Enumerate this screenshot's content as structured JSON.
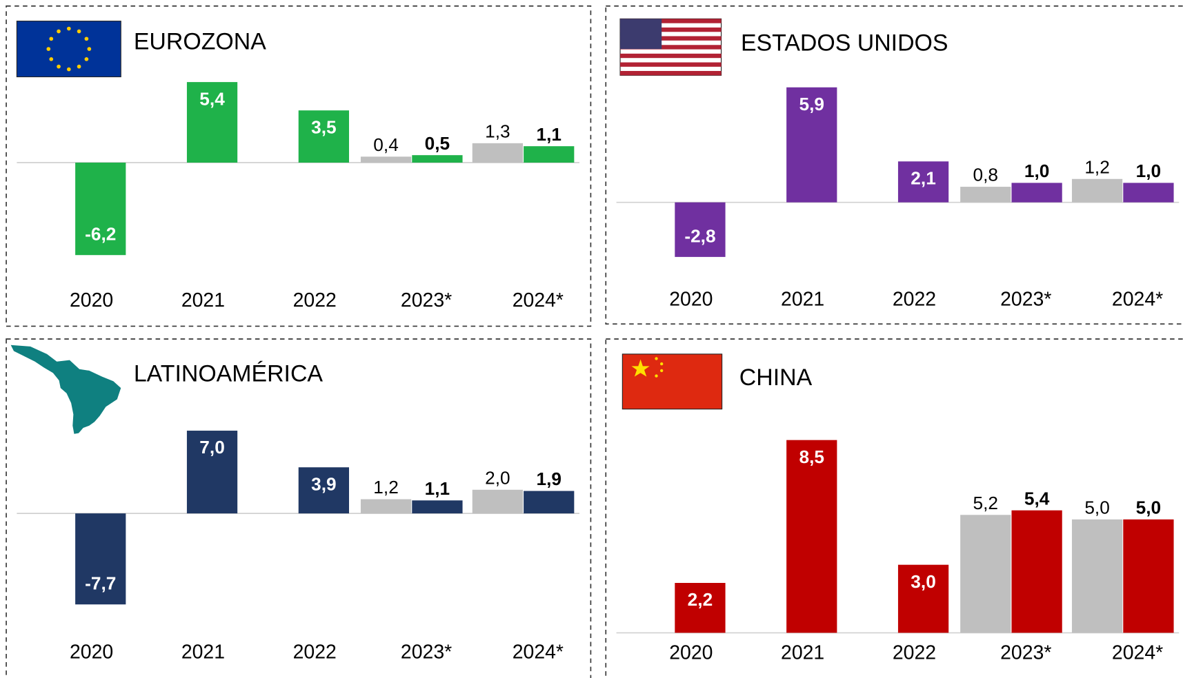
{
  "chart_data": [
    {
      "type": "bar",
      "title": "EUROZONA",
      "categories": [
        "2020",
        "2021",
        "2022",
        "2023*",
        "2024*"
      ],
      "ylim": [
        -9.2,
        5.7
      ],
      "series": [
        {
          "color": "#bfbfbf",
          "values": [
            null,
            null,
            null,
            0.4,
            1.3
          ],
          "value_labels": [
            null,
            null,
            null,
            "0,4",
            "1,3"
          ]
        },
        {
          "color": "#1fb24a",
          "values": [
            -6.2,
            5.4,
            3.5,
            0.5,
            1.1
          ],
          "value_labels": [
            "-6,2",
            "5,4",
            "3,5",
            "0,5",
            "1,1"
          ]
        }
      ]
    },
    {
      "type": "bar",
      "title": "ESTADOS UNIDOS",
      "categories": [
        "2020",
        "2021",
        "2022",
        "2023*",
        "2024*"
      ],
      "ylim": [
        -5,
        6.4
      ],
      "series": [
        {
          "color": "#bfbfbf",
          "values": [
            null,
            null,
            null,
            0.8,
            1.2
          ],
          "value_labels": [
            null,
            null,
            null,
            "0,8",
            "1,2"
          ]
        },
        {
          "color": "#7030a0",
          "values": [
            -2.8,
            5.9,
            2.1,
            1.0,
            1.0
          ],
          "value_labels": [
            "-2,8",
            "5,9",
            "2,1",
            "1,0",
            "1,0"
          ]
        }
      ]
    },
    {
      "type": "bar",
      "title": "LATINOAMÉRICA",
      "categories": [
        "2020",
        "2021",
        "2022",
        "2023*",
        "2024*"
      ],
      "ylim": [
        -10.1,
        8.7
      ],
      "series": [
        {
          "color": "#bfbfbf",
          "values": [
            null,
            null,
            null,
            1.2,
            2.0
          ],
          "value_labels": [
            null,
            null,
            null,
            "1,2",
            "2,0"
          ]
        },
        {
          "color": "#203864",
          "values": [
            -7.7,
            7.0,
            3.9,
            1.1,
            1.9
          ],
          "value_labels": [
            "-7,7",
            "7,0",
            "3,9",
            "1,1",
            "1,9"
          ]
        }
      ]
    },
    {
      "type": "bar",
      "title": "CHINA",
      "categories": [
        "2020",
        "2021",
        "2022",
        "2023*",
        "2024*"
      ],
      "ylim": [
        0,
        9.8
      ],
      "series": [
        {
          "color": "#bfbfbf",
          "values": [
            null,
            null,
            null,
            5.2,
            5.0
          ],
          "value_labels": [
            null,
            null,
            null,
            "5,2",
            "5,0"
          ]
        },
        {
          "color": "#c00000",
          "values": [
            2.2,
            8.5,
            3.0,
            5.4,
            5.0
          ],
          "value_labels": [
            "2,2",
            "8,5",
            "3,0",
            "5,4",
            "5,0"
          ]
        }
      ]
    }
  ]
}
